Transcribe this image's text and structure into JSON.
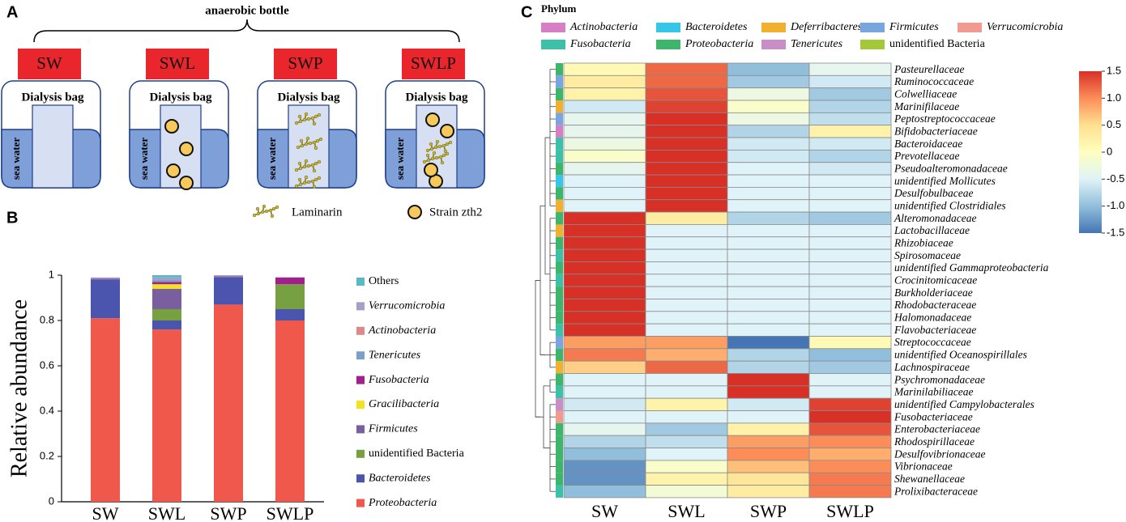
{
  "panels": [
    "A",
    "B",
    "C"
  ],
  "diagram": {
    "title": "anaerobic bottle",
    "bottles": [
      "SW",
      "SWL",
      "SWP",
      "SWLP"
    ],
    "bag_label": "Dialysis bag",
    "water_label": "sea water",
    "legend": [
      "Laminarin",
      "Strain zth2"
    ]
  },
  "chart_data": [
    {
      "type": "stacked_bar",
      "y_label": "Relative abundance",
      "categories": [
        "SW",
        "SWL",
        "SWP",
        "SWLP"
      ],
      "ylim": [
        0,
        1
      ],
      "yticks": [
        0,
        0.2,
        0.4,
        0.6,
        0.8,
        1
      ],
      "series": [
        {
          "name": "Proteobacteria",
          "color": "#f0584b",
          "values": [
            0.81,
            0.76,
            0.87,
            0.8
          ]
        },
        {
          "name": "Bacteroidetes",
          "color": "#4b55ae",
          "values": [
            0.17,
            0.04,
            0.12,
            0.05
          ]
        },
        {
          "name": "unidentified Bacteria",
          "color": "#77a042",
          "values": [
            0,
            0.05,
            0,
            0.11
          ]
        },
        {
          "name": "Firmicutes",
          "color": "#7a5f9f",
          "values": [
            0.005,
            0.09,
            0.005,
            0
          ]
        },
        {
          "name": "Gracilibacteria",
          "color": "#f4e11f",
          "values": [
            0,
            0.02,
            0,
            0
          ]
        },
        {
          "name": "Fusobacteria",
          "color": "#a1208e",
          "values": [
            0,
            0.01,
            0,
            0.03
          ]
        },
        {
          "name": "Tenericutes",
          "color": "#7aa0c8",
          "values": [
            0,
            0.01,
            0,
            0
          ]
        },
        {
          "name": "Actinobacteria",
          "color": "#d98a8a",
          "values": [
            0,
            0,
            0,
            0
          ]
        },
        {
          "name": "Verrucomicrobia",
          "color": "#a89cc8",
          "values": [
            0.005,
            0.01,
            0.005,
            0
          ]
        },
        {
          "name": "Others",
          "color": "#5bb8c8",
          "values": [
            0,
            0.01,
            0,
            0
          ]
        }
      ]
    },
    {
      "type": "heatmap",
      "legend_title": "Phylum",
      "categories": [
        "SW",
        "SWL",
        "SWP",
        "SWLP"
      ],
      "phyla": [
        {
          "name": "Actinobacteria",
          "color": "#d77fc4"
        },
        {
          "name": "Bacteroidetes",
          "color": "#35c6e8"
        },
        {
          "name": "Deferribacteres",
          "color": "#f0b030"
        },
        {
          "name": "Firmicutes",
          "color": "#79a6de"
        },
        {
          "name": "Verrucomicrobia",
          "color": "#f19a90"
        },
        {
          "name": "Fusobacteria",
          "color": "#3cc1a8"
        },
        {
          "name": "Proteobacteria",
          "color": "#3db56a"
        },
        {
          "name": "Tenericutes",
          "color": "#c88fc6"
        },
        {
          "name": "unidentified Bacteria",
          "color": "#a3c93a"
        }
      ],
      "rows": [
        "Pasteurellaceae",
        "Ruminococcaceae",
        "Colwelliaceae",
        "Marinifilaceae",
        "Peptostreptococcaceae",
        "Bifidobacteriaceae",
        "Bacteroidaceae",
        "Prevotellaceae",
        "Pseudoalteromonadaceae",
        "unidentified Mollicutes",
        "Desulfobulbaceae",
        "unidentified Clostridiales",
        "Alteromonadaceae",
        "Lactobacillaceae",
        "Rhizobiaceae",
        "Spirosomaceae",
        "unidentified Gammaproteobacteria",
        "Crocinitomicaceae",
        "Burkholderiaceae",
        "Rhodobacteraceae",
        "Halomonadaceae",
        "Flavobacteriaceae",
        "Streptococcaceae",
        "unidentified Oceanospirillales",
        "Lachnospiraceae",
        "Psychromonadaceae",
        "Marinilabiliaceae",
        "unidentified Campylobacterales",
        "Fusobacteriaceae",
        "Enterobacteriaceae",
        "Rhodospirillaceae",
        "Desulfovibrionaceae",
        "Vibrionaceae",
        "Shewanellaceae",
        "Prolixibacteraceae"
      ],
      "row_phylum": [
        "Proteobacteria",
        "Firmicutes",
        "Proteobacteria",
        "Deferribacteres",
        "Firmicutes",
        "Actinobacteria",
        "Fusobacteria",
        "Fusobacteria",
        "Proteobacteria",
        "Bacteroidetes",
        "Proteobacteria",
        "Deferribacteres",
        "Proteobacteria",
        "Deferribacteres",
        "Proteobacteria",
        "Fusobacteria",
        "Proteobacteria",
        "Fusobacteria",
        "Proteobacteria",
        "Proteobacteria",
        "Proteobacteria",
        "Fusobacteria",
        "Firmicutes",
        "Proteobacteria",
        "Deferribacteres",
        "Proteobacteria",
        "Fusobacteria",
        "Tenericutes",
        "Verrucomicrobia",
        "Proteobacteria",
        "Proteobacteria",
        "Proteobacteria",
        "Proteobacteria",
        "Proteobacteria",
        "Fusobacteria"
      ],
      "values": [
        [
          0.1,
          1.2,
          -1.0,
          -0.4
        ],
        [
          0.3,
          1.2,
          -0.9,
          -0.6
        ],
        [
          0.2,
          1.3,
          -0.3,
          -0.9
        ],
        [
          -0.6,
          1.4,
          -0.1,
          -0.8
        ],
        [
          -0.4,
          1.5,
          -0.3,
          -0.7
        ],
        [
          -0.4,
          1.5,
          -0.8,
          0.2
        ],
        [
          -0.3,
          1.5,
          -0.6,
          -0.6
        ],
        [
          -0.1,
          1.5,
          -0.6,
          -0.8
        ],
        [
          -0.4,
          1.5,
          -0.5,
          -0.6
        ],
        [
          -0.5,
          1.5,
          -0.5,
          -0.5
        ],
        [
          -0.5,
          1.5,
          -0.5,
          -0.5
        ],
        [
          -0.5,
          1.5,
          -0.5,
          -0.5
        ],
        [
          1.5,
          0.3,
          -0.8,
          -0.9
        ],
        [
          1.5,
          -0.5,
          -0.5,
          -0.5
        ],
        [
          1.5,
          -0.5,
          -0.5,
          -0.5
        ],
        [
          1.5,
          -0.5,
          -0.5,
          -0.5
        ],
        [
          1.5,
          -0.5,
          -0.5,
          -0.5
        ],
        [
          1.5,
          -0.5,
          -0.5,
          -0.5
        ],
        [
          1.5,
          -0.5,
          -0.5,
          -0.5
        ],
        [
          1.5,
          -0.5,
          -0.5,
          -0.5
        ],
        [
          1.5,
          -0.5,
          -0.5,
          -0.5
        ],
        [
          1.5,
          -0.5,
          -0.5,
          -0.5
        ],
        [
          0.9,
          0.9,
          -1.5,
          0.1
        ],
        [
          1.1,
          0.8,
          -0.8,
          -1.0
        ],
        [
          0.6,
          1.2,
          -0.8,
          -0.9
        ],
        [
          -0.5,
          -0.5,
          1.5,
          -0.5
        ],
        [
          -0.5,
          -0.5,
          1.5,
          -0.5
        ],
        [
          -0.6,
          0.2,
          -0.6,
          1.4
        ],
        [
          -0.5,
          -0.5,
          -0.5,
          1.5
        ],
        [
          -0.4,
          -0.9,
          0.2,
          1.3
        ],
        [
          -0.8,
          -0.7,
          0.9,
          1.0
        ],
        [
          -1.0,
          -0.5,
          1.0,
          0.8
        ],
        [
          -1.3,
          -0.1,
          0.7,
          1.0
        ],
        [
          -1.3,
          0.2,
          0.4,
          1.1
        ],
        [
          -1.0,
          -0.2,
          0.3,
          1.1
        ]
      ],
      "zlim": [
        -1.5,
        1.5
      ],
      "zticks": [
        1.5,
        {
          "value": 1,
          "label": "1.0"
        },
        0.5,
        0,
        -0.5,
        {
          "value": -1,
          "label": "-1.0"
        },
        -1.5
      ],
      "colorscale": [
        "#4575b4",
        "#91bfdb",
        "#e0f3f8",
        "#ffffbf",
        "#fee090",
        "#fc8d59",
        "#d73027"
      ]
    }
  ]
}
